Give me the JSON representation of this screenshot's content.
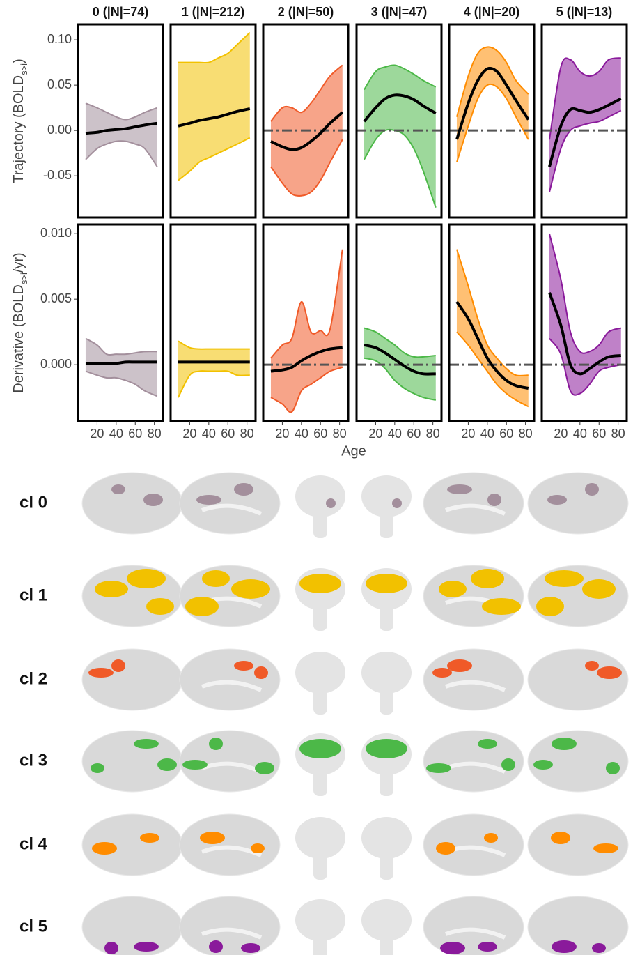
{
  "chart_data": {
    "type": "line",
    "xlabel": "Age",
    "xlim": [
      0,
      89
    ],
    "xticks": [
      20,
      40,
      60,
      80
    ],
    "x": [
      8,
      20,
      30,
      40,
      50,
      60,
      70,
      83
    ],
    "rows": [
      {
        "ylabel": [
          "Trajectory (BOLD",
          "s>i",
          ")"
        ],
        "ylim": [
          -0.096,
          0.117
        ],
        "yticks": [
          {
            "value": 0.1,
            "label": "0.10"
          },
          0.05,
          {
            "value": 0,
            "label": "0.00"
          },
          -0.05
        ]
      },
      {
        "ylabel": [
          "Derivative (BOLD",
          "s>i",
          "/yr)"
        ],
        "ylim": [
          -0.0043,
          0.0107
        ],
        "yticks": [
          {
            "value": 0.01,
            "label": "0.010"
          },
          0.005,
          {
            "value": 0,
            "label": "0.000"
          }
        ]
      }
    ],
    "panels": [
      {
        "title": "0 (|N|=74)",
        "color": "#a38f9c",
        "trajectory": {
          "mean": [
            -0.003,
            -0.002,
            0,
            0.001,
            0.002,
            0.004,
            0.006,
            0.008
          ],
          "lower": [
            -0.032,
            -0.02,
            -0.015,
            -0.012,
            -0.012,
            -0.015,
            -0.02,
            -0.04
          ],
          "upper": [
            0.03,
            0.025,
            0.02,
            0.015,
            0.012,
            0.015,
            0.02,
            0.025
          ]
        },
        "derivative": {
          "mean": [
            0.0001,
            0.0001,
            0.0001,
            0.0001,
            0.0002,
            0.0002,
            0.0002,
            0.0002
          ],
          "lower": [
            -0.0005,
            -0.0008,
            -0.001,
            -0.001,
            -0.0012,
            -0.0015,
            -0.002,
            -0.0024
          ],
          "upper": [
            0.002,
            0.0015,
            0.0008,
            0.0008,
            0.0008,
            0.0009,
            0.001,
            0.001
          ]
        }
      },
      {
        "title": "1 (|N|=212)",
        "color": "#f2c100",
        "trajectory": {
          "mean": [
            0.005,
            0.008,
            0.011,
            0.013,
            0.015,
            0.018,
            0.021,
            0.024
          ],
          "lower": [
            -0.055,
            -0.045,
            -0.035,
            -0.03,
            -0.025,
            -0.02,
            -0.015,
            -0.008
          ],
          "upper": [
            0.075,
            0.075,
            0.075,
            0.075,
            0.08,
            0.085,
            0.095,
            0.108
          ]
        },
        "derivative": {
          "mean": [
            0.0002,
            0.0002,
            0.0002,
            0.0002,
            0.0002,
            0.0002,
            0.0002,
            0.0002
          ],
          "lower": [
            -0.0025,
            -0.0008,
            -0.0005,
            -0.0005,
            -0.0005,
            -0.0005,
            -0.0008,
            -0.0008
          ],
          "upper": [
            0.0018,
            0.0013,
            0.0012,
            0.0012,
            0.0012,
            0.0012,
            0.0012,
            0.0012
          ]
        }
      },
      {
        "title": "2 (|N|=50)",
        "color": "#f05a28",
        "hline": 0,
        "trajectory": {
          "mean": [
            -0.012,
            -0.018,
            -0.021,
            -0.019,
            -0.012,
            -0.003,
            0.008,
            0.02
          ],
          "lower": [
            -0.04,
            -0.058,
            -0.07,
            -0.072,
            -0.068,
            -0.055,
            -0.035,
            -0.01
          ],
          "upper": [
            0.01,
            0.025,
            0.025,
            0.02,
            0.03,
            0.045,
            0.06,
            0.072
          ]
        },
        "derivative": {
          "mean": [
            -0.0005,
            -0.0004,
            -0.0002,
            0.0003,
            0.0007,
            0.001,
            0.0012,
            0.0013
          ],
          "lower": [
            -0.0025,
            -0.003,
            -0.0036,
            -0.002,
            -0.0015,
            -0.001,
            -0.0005,
            -0.0002
          ],
          "upper": [
            0.0005,
            0.0015,
            0.002,
            0.0048,
            0.0025,
            0.0026,
            0.0027,
            0.0088
          ]
        }
      },
      {
        "title": "3 (|N|=47)",
        "color": "#4cb848",
        "hline": 0,
        "trajectory": {
          "mean": [
            0.01,
            0.025,
            0.035,
            0.039,
            0.038,
            0.034,
            0.027,
            0.019
          ],
          "lower": [
            -0.032,
            -0.01,
            0.0,
            0.0,
            -0.005,
            -0.02,
            -0.045,
            -0.085
          ],
          "upper": [
            0.045,
            0.065,
            0.07,
            0.072,
            0.068,
            0.062,
            0.055,
            0.048
          ]
        },
        "derivative": {
          "mean": [
            0.0015,
            0.0013,
            0.0009,
            0.0004,
            -0.0001,
            -0.0005,
            -0.0007,
            -0.0007
          ],
          "lower": [
            0.0005,
            0.0003,
            -0.0003,
            -0.0012,
            -0.0018,
            -0.0022,
            -0.0025,
            -0.0027
          ],
          "upper": [
            0.0028,
            0.0025,
            0.002,
            0.0015,
            0.0009,
            0.0006,
            0.0006,
            0.0007
          ]
        }
      },
      {
        "title": "4 (|N|=20)",
        "color": "#ff8c00",
        "hline": 0,
        "trajectory": {
          "mean": [
            -0.01,
            0.03,
            0.055,
            0.068,
            0.065,
            0.05,
            0.033,
            0.012
          ],
          "lower": [
            -0.035,
            0.005,
            0.035,
            0.05,
            0.048,
            0.035,
            0.015,
            -0.01
          ],
          "upper": [
            0.015,
            0.06,
            0.085,
            0.092,
            0.088,
            0.075,
            0.055,
            0.04
          ]
        },
        "derivative": {
          "mean": [
            0.0048,
            0.0035,
            0.002,
            0.0005,
            -0.0005,
            -0.0012,
            -0.0016,
            -0.0018
          ],
          "lower": [
            0.0025,
            0.0015,
            0.0005,
            -0.0005,
            -0.0015,
            -0.0022,
            -0.0027,
            -0.0032
          ],
          "upper": [
            0.0088,
            0.006,
            0.0035,
            0.0015,
            0.0005,
            -0.0003,
            -0.0008,
            -0.0008
          ]
        }
      },
      {
        "title": "5 (|N|=13)",
        "color": "#8a1a9b",
        "hline": 0,
        "trajectory": {
          "mean": [
            -0.04,
            0.005,
            0.023,
            0.022,
            0.02,
            0.023,
            0.028,
            0.035
          ],
          "lower": [
            -0.068,
            -0.02,
            0.0,
            0.005,
            0.008,
            0.01,
            0.015,
            0.022
          ],
          "upper": [
            -0.01,
            0.07,
            0.078,
            0.065,
            0.06,
            0.065,
            0.078,
            0.08
          ]
        },
        "derivative": {
          "mean": [
            0.0055,
            0.003,
            0.0,
            -0.0007,
            -0.0003,
            0.0002,
            0.0006,
            0.0007
          ],
          "lower": [
            0.002,
            0.0008,
            -0.002,
            -0.0022,
            -0.0015,
            -0.0005,
            -0.0002,
            0.0
          ],
          "upper": [
            0.01,
            0.0065,
            0.0025,
            0.001,
            0.001,
            0.0015,
            0.0025,
            0.0028
          ]
        }
      }
    ]
  },
  "brain_maps": {
    "labels": [
      "cl 0",
      "cl 1",
      "cl 2",
      "cl 3",
      "cl 4",
      "cl 5"
    ]
  }
}
